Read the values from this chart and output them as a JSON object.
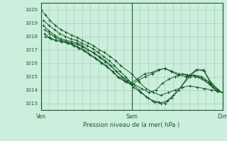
{
  "title": "Pression niveau de la mer( hPa )",
  "bg_color": "#cceedd",
  "grid_color": "#aaccbb",
  "line_color": "#1a5c2a",
  "ylim": [
    1012.5,
    1020.5
  ],
  "xtick_labels": [
    "Ven",
    "Sam",
    "Dim"
  ],
  "xtick_positions": [
    0.0,
    0.5,
    1.0
  ],
  "series": [
    {
      "x": [
        0.0,
        0.025,
        0.05,
        0.08,
        0.11,
        0.14,
        0.17,
        0.2,
        0.23,
        0.26,
        0.29,
        0.32,
        0.35,
        0.38,
        0.41,
        0.44,
        0.5,
        0.54,
        0.58,
        0.62,
        0.66,
        0.7,
        0.74,
        0.78,
        0.82,
        0.86,
        0.9,
        0.94,
        0.975,
        1.0
      ],
      "y": [
        1020.0,
        1019.6,
        1019.2,
        1018.8,
        1018.5,
        1018.3,
        1018.1,
        1017.9,
        1017.7,
        1017.5,
        1017.3,
        1017.0,
        1016.8,
        1016.5,
        1016.2,
        1015.8,
        1015.2,
        1014.6,
        1014.1,
        1013.8,
        1013.6,
        1013.8,
        1014.0,
        1014.2,
        1014.3,
        1014.2,
        1014.1,
        1014.0,
        1013.9,
        1013.8
      ]
    },
    {
      "x": [
        0.015,
        0.045,
        0.075,
        0.105,
        0.135,
        0.165,
        0.195,
        0.225,
        0.255,
        0.285,
        0.315,
        0.345,
        0.375,
        0.405,
        0.435,
        0.465,
        0.5,
        0.54,
        0.58,
        0.615,
        0.65,
        0.685,
        0.72,
        0.76,
        0.81,
        0.855,
        0.895,
        0.935,
        0.975
      ],
      "y": [
        1019.2,
        1018.8,
        1018.5,
        1018.2,
        1018.0,
        1017.8,
        1017.7,
        1017.5,
        1017.3,
        1017.1,
        1016.8,
        1016.5,
        1016.2,
        1015.8,
        1015.4,
        1015.0,
        1014.5,
        1014.0,
        1013.5,
        1013.2,
        1013.1,
        1013.0,
        1013.4,
        1014.0,
        1015.0,
        1015.5,
        1015.5,
        1014.5,
        1014.0
      ]
    },
    {
      "x": [
        0.015,
        0.045,
        0.075,
        0.11,
        0.14,
        0.17,
        0.2,
        0.23,
        0.26,
        0.29,
        0.32,
        0.355,
        0.385,
        0.415,
        0.445,
        0.475,
        0.51,
        0.55,
        0.59,
        0.625,
        0.66,
        0.695,
        0.73,
        0.77,
        0.82,
        0.86,
        0.9,
        0.94,
        0.98
      ],
      "y": [
        1018.8,
        1018.4,
        1018.1,
        1017.8,
        1017.7,
        1017.6,
        1017.5,
        1017.3,
        1017.0,
        1016.8,
        1016.5,
        1016.2,
        1015.8,
        1015.4,
        1015.0,
        1014.6,
        1014.2,
        1013.8,
        1013.4,
        1013.1,
        1013.0,
        1013.2,
        1013.6,
        1014.2,
        1015.0,
        1015.5,
        1015.4,
        1014.5,
        1014.0
      ]
    },
    {
      "x": [
        0.02,
        0.05,
        0.08,
        0.11,
        0.14,
        0.17,
        0.2,
        0.23,
        0.26,
        0.295,
        0.325,
        0.355,
        0.385,
        0.415,
        0.445,
        0.48,
        0.515,
        0.555,
        0.595,
        0.635,
        0.67,
        0.705,
        0.74,
        0.78,
        0.825,
        0.865,
        0.905,
        0.945,
        0.98,
        1.0
      ],
      "y": [
        1018.5,
        1018.2,
        1017.9,
        1017.7,
        1017.6,
        1017.5,
        1017.4,
        1017.2,
        1017.0,
        1016.7,
        1016.4,
        1016.1,
        1015.8,
        1015.4,
        1015.0,
        1014.7,
        1014.4,
        1014.1,
        1013.8,
        1014.0,
        1014.5,
        1014.8,
        1015.0,
        1015.2,
        1015.1,
        1015.0,
        1014.7,
        1014.2,
        1013.9,
        1013.8
      ]
    },
    {
      "x": [
        0.02,
        0.05,
        0.08,
        0.11,
        0.145,
        0.175,
        0.205,
        0.235,
        0.265,
        0.3,
        0.33,
        0.36,
        0.395,
        0.425,
        0.46,
        0.495,
        0.53,
        0.57,
        0.61,
        0.645,
        0.68,
        0.715,
        0.755,
        0.8,
        0.845,
        0.885,
        0.925,
        0.965,
        1.0
      ],
      "y": [
        1018.2,
        1017.9,
        1017.7,
        1017.6,
        1017.5,
        1017.4,
        1017.2,
        1017.0,
        1016.7,
        1016.4,
        1016.1,
        1015.8,
        1015.4,
        1015.0,
        1014.7,
        1014.5,
        1014.8,
        1015.2,
        1015.3,
        1015.5,
        1015.6,
        1015.4,
        1015.1,
        1015.0,
        1015.1,
        1015.0,
        1014.6,
        1014.0,
        1013.8
      ]
    },
    {
      "x": [
        0.025,
        0.055,
        0.085,
        0.115,
        0.15,
        0.18,
        0.21,
        0.24,
        0.27,
        0.305,
        0.335,
        0.365,
        0.4,
        0.43,
        0.465,
        0.5,
        0.535,
        0.575,
        0.615,
        0.65,
        0.685,
        0.72,
        0.76,
        0.805,
        0.85,
        0.89,
        0.93,
        0.97,
        1.0
      ],
      "y": [
        1018.0,
        1017.8,
        1017.7,
        1017.6,
        1017.5,
        1017.3,
        1017.1,
        1016.9,
        1016.6,
        1016.3,
        1016.0,
        1015.7,
        1015.3,
        1014.9,
        1014.6,
        1014.4,
        1014.7,
        1015.0,
        1015.2,
        1015.5,
        1015.6,
        1015.4,
        1015.2,
        1015.1,
        1015.0,
        1014.8,
        1014.4,
        1013.9,
        1013.8
      ]
    }
  ]
}
